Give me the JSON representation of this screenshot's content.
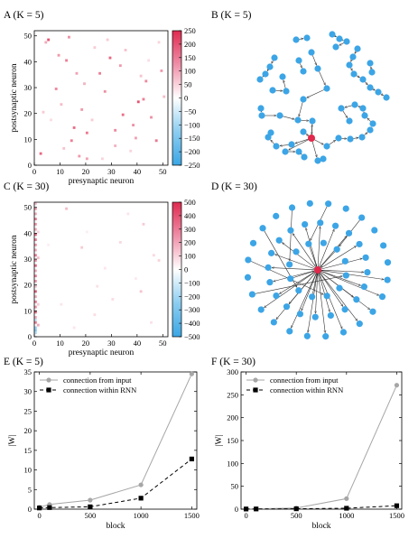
{
  "chart_data": [
    {
      "panel": "A",
      "title_letter": "A",
      "title_cond": "(K = 5)",
      "type": "heatmap",
      "xlabel": "presynaptic neuron",
      "ylabel": "postsynaptic neuron",
      "xlim": [
        0,
        52
      ],
      "ylim": [
        0,
        52
      ],
      "xticks": [
        0,
        10,
        20,
        30,
        40,
        50
      ],
      "yticks": [
        0,
        10,
        20,
        30,
        40,
        50
      ],
      "colorbar": {
        "min": -250,
        "max": 250,
        "ticks": [
          250,
          200,
          150,
          100,
          50,
          0,
          -50,
          -100,
          -150,
          -200,
          -250
        ]
      },
      "cells": [
        [
          2,
          4,
          180
        ],
        [
          5,
          48,
          200
        ],
        [
          8,
          29,
          140
        ],
        [
          12,
          40,
          150
        ],
        [
          15,
          14,
          170
        ],
        [
          16,
          35,
          110
        ],
        [
          18,
          21,
          120
        ],
        [
          20,
          12,
          160
        ],
        [
          25,
          35,
          150
        ],
        [
          27,
          28,
          130
        ],
        [
          29,
          41,
          180
        ],
        [
          31,
          13,
          140
        ],
        [
          33,
          38,
          120
        ],
        [
          34,
          19,
          170
        ],
        [
          38,
          15,
          130
        ],
        [
          40,
          24,
          200
        ],
        [
          42,
          25,
          150
        ],
        [
          43,
          32,
          140
        ],
        [
          45,
          18,
          130
        ],
        [
          47,
          9,
          160
        ],
        [
          49,
          36,
          120
        ],
        [
          10,
          23,
          80
        ],
        [
          14,
          9,
          150
        ],
        [
          19,
          31,
          90
        ],
        [
          22,
          17,
          60
        ],
        [
          4,
          47,
          100
        ],
        [
          13,
          49,
          130
        ],
        [
          31,
          7,
          90
        ],
        [
          39,
          10,
          110
        ],
        [
          50,
          26,
          80
        ],
        [
          9,
          42,
          120
        ],
        [
          41,
          34,
          70
        ],
        [
          23,
          45,
          60
        ],
        [
          26,
          2,
          50
        ],
        [
          35,
          44,
          70
        ],
        [
          6,
          17,
          40
        ],
        [
          17,
          3,
          120
        ],
        [
          48,
          47,
          50
        ],
        [
          3,
          20,
          60
        ],
        [
          37,
          5,
          50
        ],
        [
          44,
          40,
          40
        ],
        [
          28,
          48,
          60
        ],
        [
          11,
          6,
          70
        ],
        [
          20,
          2,
          110
        ]
      ]
    },
    {
      "panel": "B",
      "title_letter": "B",
      "title_cond": "(K = 5)",
      "type": "network",
      "hub_color": "#e2284b",
      "node_color": "#3ca5e6"
    },
    {
      "panel": "C",
      "title_letter": "C",
      "title_cond": "(K = 30)",
      "type": "heatmap",
      "xlabel": "presynaptic neuron",
      "ylabel": "postsynaptic neuron",
      "xlim": [
        0,
        52
      ],
      "ylim": [
        0,
        52
      ],
      "xticks": [
        0,
        10,
        20,
        30,
        40,
        50
      ],
      "yticks": [
        0,
        10,
        20,
        30,
        40,
        50
      ],
      "colorbar": {
        "min": -500,
        "max": 500,
        "ticks": [
          500,
          400,
          300,
          200,
          100,
          0,
          -100,
          -200,
          -300,
          -400,
          -500
        ]
      },
      "cells": [
        [
          0,
          2,
          -300
        ],
        [
          0,
          3,
          -250
        ],
        [
          0,
          5,
          300
        ],
        [
          0,
          7,
          200
        ],
        [
          0,
          9,
          350
        ],
        [
          0,
          11,
          250
        ],
        [
          0,
          13,
          300
        ],
        [
          0,
          15,
          200
        ],
        [
          0,
          17,
          380
        ],
        [
          0,
          19,
          150
        ],
        [
          0,
          21,
          250
        ],
        [
          0,
          23,
          300
        ],
        [
          0,
          25,
          200
        ],
        [
          0,
          27,
          350
        ],
        [
          0,
          29,
          250
        ],
        [
          0,
          31,
          300
        ],
        [
          0,
          33,
          200
        ],
        [
          0,
          35,
          250
        ],
        [
          0,
          37,
          300
        ],
        [
          0,
          39,
          350
        ],
        [
          0,
          41,
          200
        ],
        [
          0,
          43,
          250
        ],
        [
          0,
          45,
          300
        ],
        [
          0,
          47,
          200
        ],
        [
          0,
          49,
          250
        ],
        [
          0,
          51,
          150
        ],
        [
          0,
          1,
          -200
        ],
        [
          0,
          6,
          -150
        ],
        [
          1,
          4,
          200
        ],
        [
          1,
          30,
          150
        ],
        [
          1,
          12,
          120
        ],
        [
          1,
          40,
          100
        ],
        [
          12,
          49,
          160
        ],
        [
          18,
          34,
          120
        ],
        [
          23,
          8,
          80
        ],
        [
          33,
          36,
          90
        ],
        [
          42,
          43,
          120
        ],
        [
          41,
          17,
          140
        ],
        [
          48,
          29,
          100
        ],
        [
          30,
          14,
          80
        ],
        [
          15,
          3,
          60
        ],
        [
          46,
          31,
          90
        ],
        [
          24,
          19,
          70
        ],
        [
          10,
          12,
          60
        ],
        [
          36,
          47,
          60
        ],
        [
          20,
          40,
          40
        ],
        [
          27,
          26,
          60
        ],
        [
          5,
          35,
          40
        ],
        [
          45,
          5,
          70
        ],
        [
          39,
          22,
          50
        ]
      ]
    },
    {
      "panel": "D",
      "title_letter": "D",
      "title_cond": "(K = 30)",
      "type": "network",
      "hub_color": "#e2284b",
      "node_color": "#3ca5e6"
    },
    {
      "panel": "E",
      "title_letter": "E",
      "title_cond": "(K = 5)",
      "type": "line",
      "xlabel": "block",
      "ylabel": "|W|",
      "x": [
        0,
        100,
        500,
        1000,
        1500
      ],
      "xticks": [
        0,
        500,
        1000,
        1500
      ],
      "ylim": [
        0,
        35
      ],
      "yticks": [
        0,
        5,
        10,
        15,
        20,
        25,
        30,
        35
      ],
      "series": [
        {
          "name": "connection from input",
          "values": [
            0.5,
            1.2,
            2.3,
            6.2,
            34.5
          ],
          "color": "#a6a6a6",
          "marker": "circle",
          "dash": "solid"
        },
        {
          "name": "connection within RNN",
          "values": [
            0.3,
            0.4,
            0.6,
            2.8,
            12.8
          ],
          "color": "#000000",
          "marker": "square",
          "dash": "dashed"
        }
      ],
      "legend": "top-left"
    },
    {
      "panel": "F",
      "title_letter": "F",
      "title_cond": "(K = 30)",
      "type": "line",
      "xlabel": "block",
      "ylabel": "|W|",
      "x": [
        0,
        100,
        500,
        1000,
        1500
      ],
      "xticks": [
        0,
        500,
        1000,
        1500
      ],
      "ylim": [
        0,
        300
      ],
      "yticks": [
        0,
        50,
        100,
        150,
        200,
        250,
        300
      ],
      "series": [
        {
          "name": "connection from input",
          "values": [
            0.5,
            0.8,
            2.5,
            23,
            271
          ],
          "color": "#a6a6a6",
          "marker": "circle",
          "dash": "solid"
        },
        {
          "name": "connection within RNN",
          "values": [
            0.3,
            0.4,
            0.8,
            2,
            7.5
          ],
          "color": "#000000",
          "marker": "square",
          "dash": "dashed"
        }
      ],
      "legend": "top-left"
    }
  ]
}
